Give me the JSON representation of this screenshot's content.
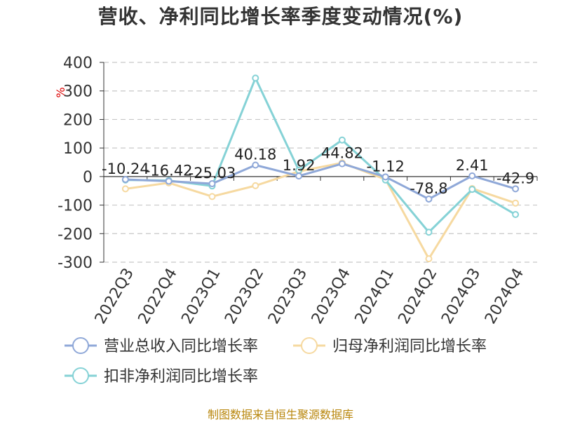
{
  "title": "营收、净利同比增长率季度变动情况(%)",
  "source": "制图数据来自恒生聚源数据库",
  "chart_data": {
    "type": "line",
    "title": "营收、净利同比增长率季度变动情况(%)",
    "ylabel": "%",
    "xlabel": "",
    "ylim": [
      -300,
      400
    ],
    "yticks": [
      400,
      300,
      200,
      100,
      0,
      -100,
      -200,
      -300
    ],
    "grid": true,
    "legend_position": "bottom",
    "categories": [
      "2022Q3",
      "2022Q4",
      "2023Q1",
      "2023Q2",
      "2023Q3",
      "2023Q4",
      "2024Q1",
      "2024Q2",
      "2024Q3",
      "2024Q4"
    ],
    "series": [
      {
        "name": "营业总收入同比增长率",
        "color": "#8fa8d8",
        "values": [
          -10.24,
          -16.42,
          -25.03,
          40.18,
          1.92,
          44.82,
          -1.12,
          -78.8,
          2.41,
          -42.9
        ],
        "labels": [
          "-10.24",
          "-16.42",
          "-25.03",
          "40.18",
          "1.92",
          "44.82",
          "-1.12",
          "-78.8",
          "2.41",
          "-42.9"
        ]
      },
      {
        "name": "归母净利润同比增长率",
        "color": "#f6d9a0",
        "values": [
          -43,
          -22,
          -70,
          -32,
          18,
          48,
          -10,
          -288,
          -42,
          -93
        ]
      },
      {
        "name": "扣非净利润同比增长率",
        "color": "#85d2d6",
        "values": [
          -12,
          -14,
          -33,
          345,
          22,
          128,
          -12,
          -195,
          -45,
          -133
        ]
      }
    ]
  }
}
